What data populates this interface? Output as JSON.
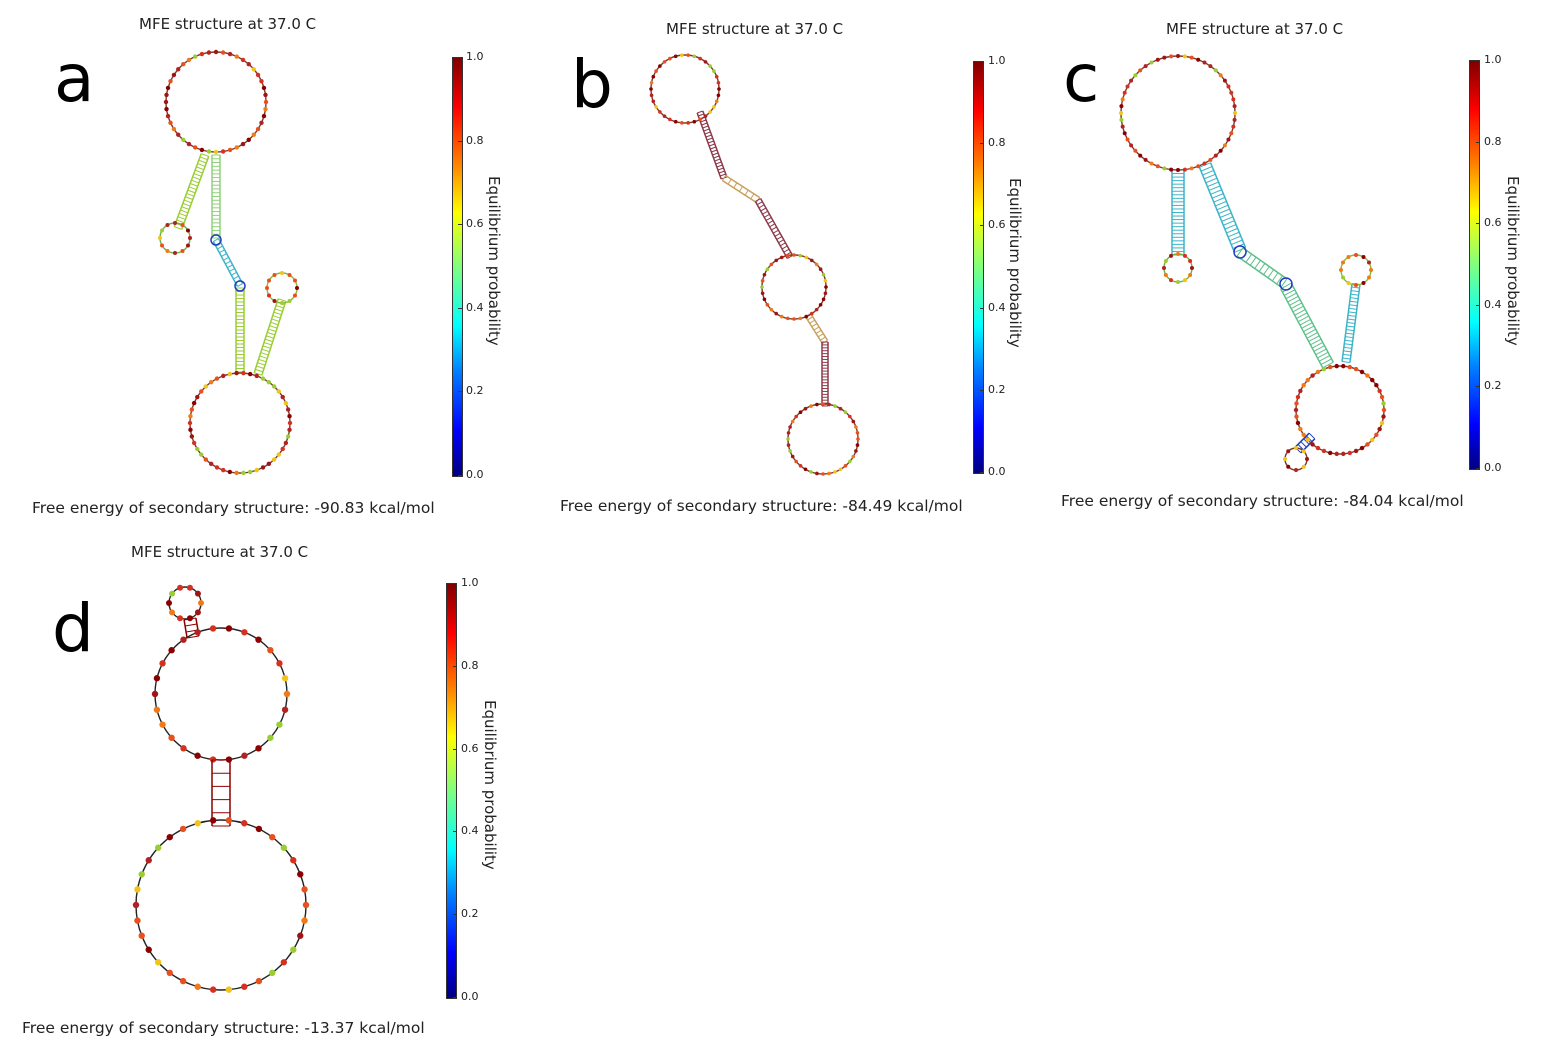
{
  "panels": [
    {
      "letter": "a",
      "title": "MFE structure at 37.0 C",
      "energy": "Free energy of secondary structure: -90.83 kcal/mol"
    },
    {
      "letter": "b",
      "title": "MFE structure at 37.0 C",
      "energy": "Free energy of secondary structure: -84.49 kcal/mol"
    },
    {
      "letter": "c",
      "title": "MFE structure at 37.0 C",
      "energy": "Free energy of secondary structure: -84.04 kcal/mol"
    },
    {
      "letter": "d",
      "title": "MFE structure at 37.0 C",
      "energy": "Free energy of secondary structure: -13.37 kcal/mol"
    }
  ],
  "colorbar": {
    "label": "Equilibrium probability",
    "ticks": [
      "0.0",
      "0.2",
      "0.4",
      "0.6",
      "0.8",
      "1.0"
    ],
    "range": [
      0.0,
      1.0
    ]
  },
  "colors": {
    "paired_high": "#8b0000",
    "loop_mixed": "#e84a1e",
    "stem_green": "#9acd32",
    "stem_cyan": "#3cb4c8",
    "stem_blue": "#1f3fbf"
  }
}
